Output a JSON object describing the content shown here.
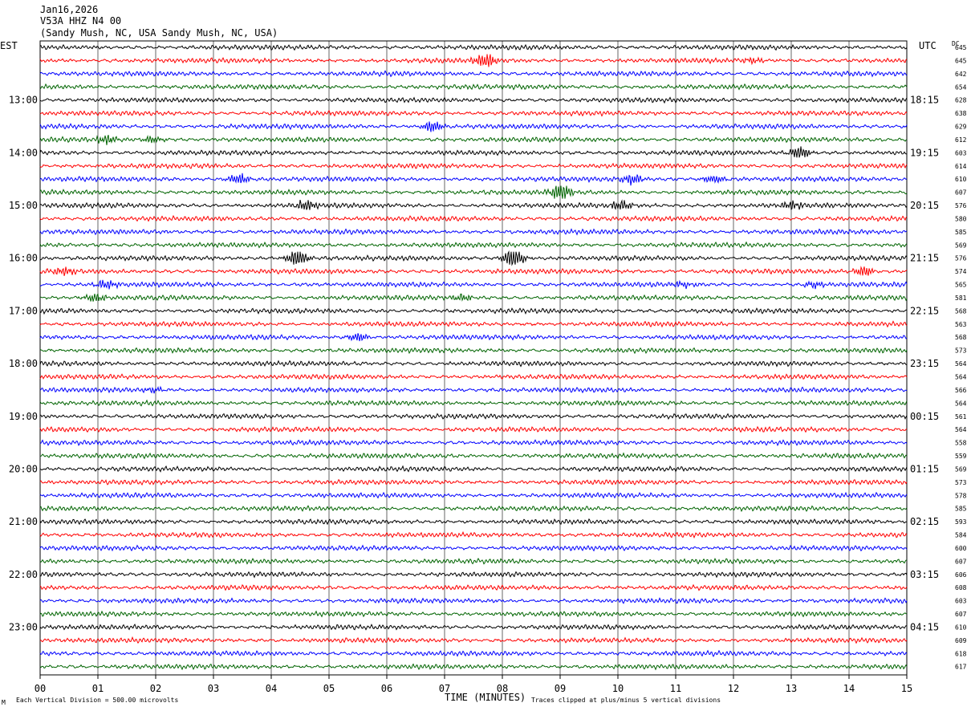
{
  "header": {
    "date": "Jan16,2026",
    "station": "V53A HHZ N4 00",
    "location": "(Sandy Mush, NC, USA Sandy Mush, NC, USA)"
  },
  "labels": {
    "left_tz": "EST",
    "right_tz": "UTC",
    "dc": "DC",
    "xlabel": "TIME (MINUTES)",
    "scale_note": "Each Vertical Division =  500.00 microvolts",
    "clip_note": "Traces clipped at plus/minus 5 vertical divisions",
    "corner_mark": "M"
  },
  "colors": [
    "#000000",
    "#ff0000",
    "#0000ff",
    "#006400"
  ],
  "chart_data": {
    "type": "line",
    "x_ticks": [
      "00",
      "01",
      "02",
      "03",
      "04",
      "05",
      "06",
      "07",
      "08",
      "09",
      "10",
      "11",
      "12",
      "13",
      "14",
      "15"
    ],
    "xlim": [
      0,
      15
    ],
    "left_hours": [
      "13:00",
      "14:00",
      "15:00",
      "16:00",
      "17:00",
      "18:00",
      "19:00",
      "20:00",
      "21:00",
      "22:00",
      "23:00"
    ],
    "right_hours": [
      "18:15",
      "19:15",
      "20:15",
      "21:15",
      "22:15",
      "23:15",
      "00:15",
      "01:15",
      "02:15",
      "03:15",
      "04:15"
    ],
    "dc_values": [
      645,
      645,
      642,
      654,
      628,
      638,
      629,
      612,
      603,
      614,
      610,
      607,
      576,
      580,
      585,
      569,
      576,
      574,
      565,
      581,
      568,
      563,
      568,
      573,
      564,
      564,
      566,
      564,
      561,
      564,
      558,
      559,
      569,
      573,
      578,
      585,
      593,
      584,
      600,
      607,
      606,
      608,
      603,
      607,
      610,
      609,
      618,
      617
    ],
    "events": [
      {
        "row": 1,
        "minute": 7.7,
        "amp": 2.2
      },
      {
        "row": 1,
        "minute": 12.35,
        "amp": 0.8
      },
      {
        "row": 6,
        "minute": 6.8,
        "amp": 1.6
      },
      {
        "row": 7,
        "minute": 1.15,
        "amp": 1.2
      },
      {
        "row": 7,
        "minute": 1.95,
        "amp": 0.9
      },
      {
        "row": 8,
        "minute": 13.15,
        "amp": 2.0
      },
      {
        "row": 10,
        "minute": 3.45,
        "amp": 1.6
      },
      {
        "row": 10,
        "minute": 10.25,
        "amp": 1.5
      },
      {
        "row": 10,
        "minute": 11.65,
        "amp": 1.2
      },
      {
        "row": 11,
        "minute": 9.0,
        "amp": 2.6
      },
      {
        "row": 12,
        "minute": 4.6,
        "amp": 1.4
      },
      {
        "row": 12,
        "minute": 10.05,
        "amp": 1.5
      },
      {
        "row": 12,
        "minute": 13.0,
        "amp": 1.1
      },
      {
        "row": 16,
        "minute": 4.45,
        "amp": 2.4
      },
      {
        "row": 16,
        "minute": 8.2,
        "amp": 3.0
      },
      {
        "row": 17,
        "minute": 0.4,
        "amp": 1.3
      },
      {
        "row": 17,
        "minute": 14.25,
        "amp": 1.5
      },
      {
        "row": 18,
        "minute": 1.15,
        "amp": 1.3
      },
      {
        "row": 18,
        "minute": 11.1,
        "amp": 0.8
      },
      {
        "row": 18,
        "minute": 13.4,
        "amp": 0.9
      },
      {
        "row": 19,
        "minute": 0.95,
        "amp": 1.2
      },
      {
        "row": 19,
        "minute": 7.3,
        "amp": 1.0
      },
      {
        "row": 22,
        "minute": 5.5,
        "amp": 1.3
      },
      {
        "row": 26,
        "minute": 1.95,
        "amp": 0.7
      }
    ]
  }
}
